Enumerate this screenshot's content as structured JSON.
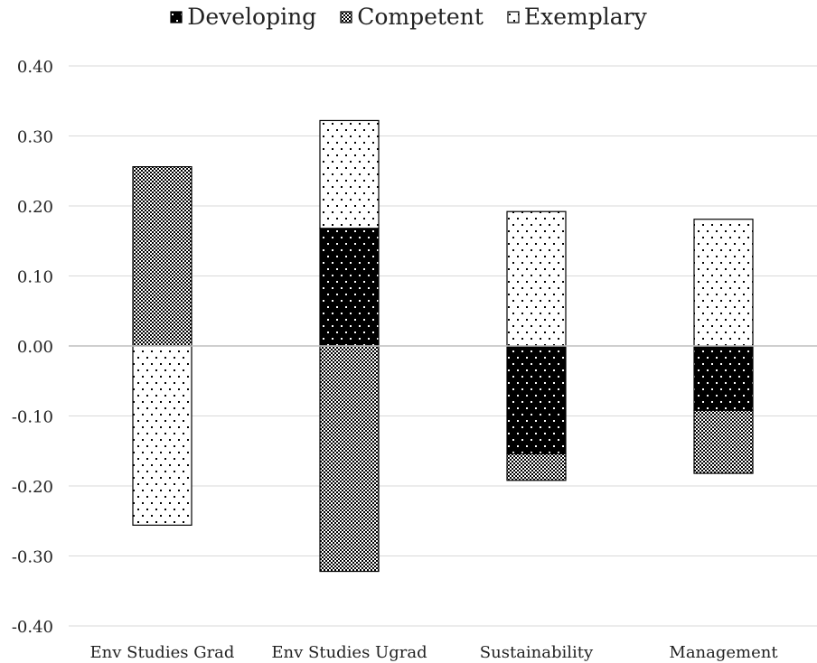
{
  "chart_data": {
    "type": "bar",
    "stacked": true,
    "title": "",
    "xlabel": "",
    "ylabel": "",
    "categories": [
      "Env Studies Grad",
      "Env Studies Ugrad",
      "Sustainability",
      "Management"
    ],
    "ylim": [
      -0.4,
      0.4
    ],
    "yticks": [
      0.4,
      0.3,
      0.2,
      0.1,
      0.0,
      -0.1,
      -0.2,
      -0.3,
      -0.4
    ],
    "ytick_labels": [
      "0.40",
      "0.30",
      "0.20",
      "0.10",
      "0.00",
      "-0.10",
      "-0.20",
      "-0.30",
      "-0.40"
    ],
    "grid": "horizontal",
    "legend_position": "top-center",
    "series": [
      {
        "name": "Developing",
        "pattern": "dots-on-black",
        "values": [
          0.0,
          0.168,
          -0.154,
          -0.092
        ]
      },
      {
        "name": "Competent",
        "pattern": "checker",
        "values": [
          0.256,
          -0.322,
          -0.038,
          -0.09
        ]
      },
      {
        "name": "Exemplary",
        "pattern": "dots-on-white",
        "values": [
          -0.256,
          0.154,
          0.192,
          0.181
        ]
      }
    ]
  },
  "colors": {
    "black": "#000000",
    "white": "#ffffff",
    "grid": "#d9d9d9",
    "axis": "#bfbfbf",
    "text": "#222222"
  }
}
